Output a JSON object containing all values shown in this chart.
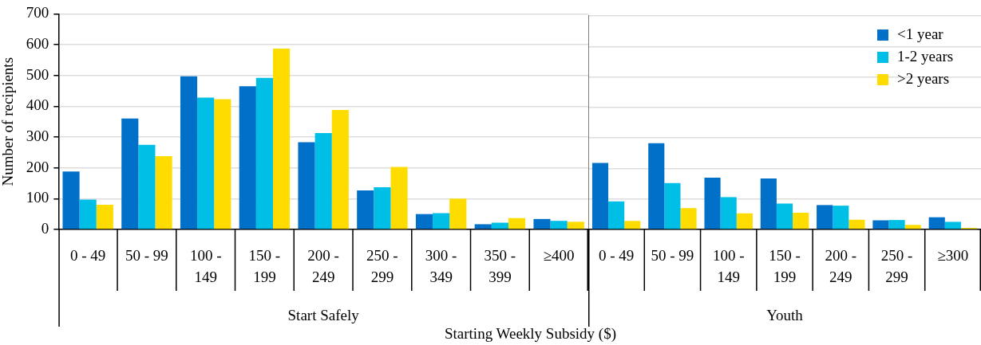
{
  "chart_data": [
    {
      "type": "bar",
      "xlabel": "Start Safely",
      "ylabel": "Number of recipients",
      "categories": [
        "0 - 49",
        "50 - 99",
        "100 - 149",
        "150 - 199",
        "200 - 249",
        "250 - 299",
        "300 - 349",
        "350 - 399",
        "≥400"
      ],
      "series": [
        {
          "color": "#0070c8",
          "values": [
            188,
            360,
            497,
            465,
            283,
            127,
            50,
            17,
            34
          ]
        },
        {
          "color": "#00bfe6",
          "values": [
            97,
            275,
            428,
            492,
            313,
            137,
            53,
            22,
            28
          ]
        },
        {
          "color": "#ffdc00",
          "values": [
            80,
            238,
            423,
            587,
            388,
            203,
            100,
            37,
            25
          ]
        }
      ],
      "annotations": [
        "Starting Weekly Subsidy ($)"
      ],
      "ylim": [
        0,
        700
      ],
      "yticks": [
        0,
        100,
        200,
        300,
        400,
        500,
        600,
        700
      ],
      "grid": "y"
    },
    {
      "type": "bar",
      "xlabel": "Youth",
      "categories": [
        "0 - 49",
        "50 - 99",
        "100 - 149",
        "150 - 199",
        "200 - 249",
        "250 - 299",
        "≥300"
      ],
      "series": [
        {
          "name": "<1 year",
          "color": "#0070c8",
          "values": [
            218,
            283,
            170,
            167,
            80,
            30,
            40
          ]
        },
        {
          "name": "1-2 years",
          "color": "#00bfe6",
          "values": [
            92,
            152,
            106,
            85,
            78,
            31,
            25
          ]
        },
        {
          "name": ">2 years",
          "color": "#ffdc00",
          "values": [
            28,
            70,
            53,
            55,
            32,
            15,
            5
          ]
        }
      ],
      "ylim": [
        0,
        700
      ],
      "yticks": [
        0,
        100,
        200,
        300,
        400,
        500,
        600,
        700
      ],
      "grid": "y",
      "tick_labels": "x",
      "legend": "top right"
    }
  ]
}
